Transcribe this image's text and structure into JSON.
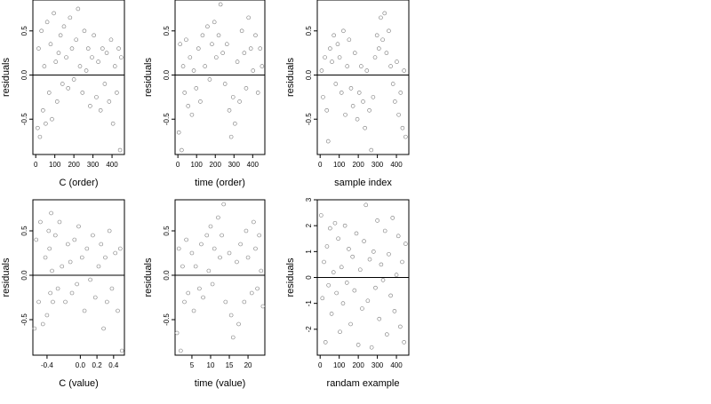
{
  "figure": {
    "ylabel_text": "residuals"
  },
  "chart_data": [
    {
      "type": "scatter",
      "id": "c-order",
      "xlabel": "C (order)",
      "ylabel": "residuals",
      "xlim": [
        -15,
        465
      ],
      "ylim": [
        -0.9,
        0.85
      ],
      "xticks": [
        0,
        100,
        200,
        300,
        400
      ],
      "xtick_labels": [
        "0",
        "100",
        "200",
        "300",
        "400"
      ],
      "yticks": [
        -0.5,
        0.0,
        0.5
      ],
      "ytick_labels": [
        "-0.5",
        "0.0",
        "0.5"
      ],
      "hline": 0,
      "grid": false,
      "points": [
        [
          10,
          -0.6
        ],
        [
          15,
          0.3
        ],
        [
          22,
          -0.7
        ],
        [
          30,
          0.5
        ],
        [
          38,
          -0.4
        ],
        [
          45,
          0.1
        ],
        [
          52,
          -0.55
        ],
        [
          60,
          0.6
        ],
        [
          70,
          -0.2
        ],
        [
          78,
          0.35
        ],
        [
          85,
          -0.5
        ],
        [
          95,
          0.7
        ],
        [
          105,
          0.15
        ],
        [
          112,
          -0.3
        ],
        [
          120,
          0.25
        ],
        [
          130,
          0.45
        ],
        [
          140,
          -0.1
        ],
        [
          148,
          0.55
        ],
        [
          160,
          0.2
        ],
        [
          170,
          -0.15
        ],
        [
          180,
          0.65
        ],
        [
          190,
          0.3
        ],
        [
          200,
          -0.05
        ],
        [
          212,
          0.4
        ],
        [
          222,
          0.75
        ],
        [
          232,
          0.1
        ],
        [
          245,
          -0.2
        ],
        [
          255,
          0.5
        ],
        [
          265,
          0.05
        ],
        [
          275,
          0.3
        ],
        [
          285,
          -0.35
        ],
        [
          295,
          0.2
        ],
        [
          305,
          0.45
        ],
        [
          318,
          -0.25
        ],
        [
          328,
          0.15
        ],
        [
          340,
          -0.4
        ],
        [
          350,
          0.3
        ],
        [
          362,
          -0.1
        ],
        [
          372,
          0.25
        ],
        [
          385,
          -0.3
        ],
        [
          395,
          0.4
        ],
        [
          405,
          -0.55
        ],
        [
          415,
          0.1
        ],
        [
          425,
          -0.2
        ],
        [
          435,
          0.3
        ],
        [
          442,
          -0.85
        ],
        [
          448,
          0.2
        ]
      ]
    },
    {
      "type": "scatter",
      "id": "time-order",
      "xlabel": "time (order)",
      "ylabel": "residuals",
      "xlim": [
        -15,
        465
      ],
      "ylim": [
        -0.9,
        0.85
      ],
      "xticks": [
        0,
        100,
        200,
        300,
        400
      ],
      "xtick_labels": [
        "0",
        "100",
        "200",
        "300",
        "400"
      ],
      "yticks": [
        -0.5,
        0.0,
        0.5
      ],
      "ytick_labels": [
        "-0.5",
        "0.0",
        "0.5"
      ],
      "hline": 0,
      "grid": false,
      "points": [
        [
          5,
          -0.65
        ],
        [
          12,
          0.35
        ],
        [
          20,
          -0.85
        ],
        [
          28,
          0.1
        ],
        [
          36,
          -0.2
        ],
        [
          44,
          0.4
        ],
        [
          55,
          -0.35
        ],
        [
          65,
          0.2
        ],
        [
          75,
          -0.45
        ],
        [
          85,
          0.05
        ],
        [
          98,
          -0.15
        ],
        [
          110,
          0.3
        ],
        [
          120,
          -0.3
        ],
        [
          132,
          0.45
        ],
        [
          145,
          0.1
        ],
        [
          158,
          0.55
        ],
        [
          170,
          -0.05
        ],
        [
          182,
          0.35
        ],
        [
          195,
          0.6
        ],
        [
          205,
          0.2
        ],
        [
          218,
          0.45
        ],
        [
          228,
          0.8
        ],
        [
          240,
          0.25
        ],
        [
          252,
          -0.1
        ],
        [
          262,
          0.35
        ],
        [
          275,
          -0.4
        ],
        [
          285,
          -0.7
        ],
        [
          295,
          -0.25
        ],
        [
          305,
          -0.55
        ],
        [
          318,
          0.15
        ],
        [
          330,
          -0.3
        ],
        [
          342,
          0.5
        ],
        [
          355,
          0.25
        ],
        [
          365,
          -0.15
        ],
        [
          378,
          0.65
        ],
        [
          390,
          0.3
        ],
        [
          402,
          0.05
        ],
        [
          415,
          0.45
        ],
        [
          428,
          -0.2
        ],
        [
          440,
          0.3
        ],
        [
          450,
          0.1
        ]
      ]
    },
    {
      "type": "scatter",
      "id": "sample-index",
      "xlabel": "sample index",
      "ylabel": "residuals",
      "xlim": [
        -15,
        465
      ],
      "ylim": [
        -0.9,
        0.85
      ],
      "xticks": [
        0,
        100,
        200,
        300,
        400
      ],
      "xtick_labels": [
        "0",
        "100",
        "200",
        "300",
        "400"
      ],
      "yticks": [
        -0.5,
        0.0,
        0.5
      ],
      "ytick_labels": [
        "-0.5",
        "0.0",
        "0.5"
      ],
      "hline": 0,
      "grid": false,
      "points": [
        [
          8,
          0.05
        ],
        [
          15,
          -0.25
        ],
        [
          25,
          0.2
        ],
        [
          35,
          -0.4
        ],
        [
          42,
          -0.75
        ],
        [
          52,
          0.3
        ],
        [
          62,
          0.15
        ],
        [
          72,
          0.45
        ],
        [
          82,
          -0.1
        ],
        [
          92,
          0.35
        ],
        [
          102,
          0.2
        ],
        [
          112,
          -0.2
        ],
        [
          122,
          0.5
        ],
        [
          132,
          -0.45
        ],
        [
          142,
          0.1
        ],
        [
          152,
          0.4
        ],
        [
          162,
          -0.15
        ],
        [
          172,
          -0.35
        ],
        [
          182,
          0.25
        ],
        [
          195,
          -0.5
        ],
        [
          205,
          -0.2
        ],
        [
          215,
          0.1
        ],
        [
          225,
          -0.3
        ],
        [
          235,
          -0.6
        ],
        [
          245,
          0.05
        ],
        [
          258,
          -0.4
        ],
        [
          268,
          -0.85
        ],
        [
          278,
          -0.25
        ],
        [
          288,
          0.2
        ],
        [
          298,
          0.45
        ],
        [
          308,
          0.3
        ],
        [
          318,
          0.65
        ],
        [
          328,
          0.4
        ],
        [
          338,
          0.7
        ],
        [
          348,
          0.25
        ],
        [
          360,
          0.5
        ],
        [
          370,
          0.1
        ],
        [
          382,
          -0.1
        ],
        [
          392,
          -0.3
        ],
        [
          402,
          0.15
        ],
        [
          412,
          -0.45
        ],
        [
          422,
          -0.2
        ],
        [
          432,
          -0.6
        ],
        [
          440,
          0.05
        ],
        [
          448,
          -0.7
        ]
      ]
    },
    {
      "type": "scatter",
      "id": "c-value",
      "xlabel": "C (value)",
      "ylabel": "residuals",
      "xlim": [
        -0.57,
        0.53
      ],
      "ylim": [
        -0.9,
        0.85
      ],
      "xticks": [
        -0.4,
        0.0,
        0.2,
        0.4
      ],
      "xtick_labels": [
        "-0.4",
        "0.0",
        "0.2",
        "0.4"
      ],
      "yticks": [
        -0.5,
        0.0,
        0.5
      ],
      "ytick_labels": [
        "-0.5",
        "0.0",
        "0.5"
      ],
      "hline": 0,
      "grid": false,
      "points": [
        [
          -0.55,
          -0.6
        ],
        [
          -0.53,
          0.4
        ],
        [
          -0.5,
          -0.3
        ],
        [
          -0.48,
          0.6
        ],
        [
          -0.45,
          -0.55
        ],
        [
          -0.42,
          0.2
        ],
        [
          -0.4,
          -0.45
        ],
        [
          -0.38,
          0.5
        ],
        [
          -0.37,
          0.3
        ],
        [
          -0.36,
          -0.2
        ],
        [
          -0.35,
          0.7
        ],
        [
          -0.34,
          0.05
        ],
        [
          -0.33,
          -0.3
        ],
        [
          -0.3,
          0.45
        ],
        [
          -0.27,
          -0.15
        ],
        [
          -0.25,
          0.6
        ],
        [
          -0.22,
          0.1
        ],
        [
          -0.18,
          -0.3
        ],
        [
          -0.15,
          0.35
        ],
        [
          -0.12,
          0.15
        ],
        [
          -0.1,
          -0.2
        ],
        [
          -0.07,
          0.4
        ],
        [
          -0.04,
          -0.1
        ],
        [
          -0.02,
          0.55
        ],
        [
          0.02,
          0.2
        ],
        [
          0.05,
          -0.4
        ],
        [
          0.08,
          0.3
        ],
        [
          0.12,
          -0.05
        ],
        [
          0.15,
          0.45
        ],
        [
          0.18,
          -0.25
        ],
        [
          0.22,
          0.1
        ],
        [
          0.25,
          0.35
        ],
        [
          0.28,
          -0.6
        ],
        [
          0.3,
          0.2
        ],
        [
          0.32,
          -0.3
        ],
        [
          0.35,
          0.5
        ],
        [
          0.38,
          -0.15
        ],
        [
          0.42,
          0.25
        ],
        [
          0.45,
          -0.4
        ],
        [
          0.48,
          0.3
        ],
        [
          0.5,
          -0.85
        ]
      ]
    },
    {
      "type": "scatter",
      "id": "time-value",
      "xlabel": "time (value)",
      "ylabel": "residuals",
      "xlim": [
        0.5,
        24.5
      ],
      "ylim": [
        -0.9,
        0.85
      ],
      "xticks": [
        5,
        10,
        15,
        20
      ],
      "xtick_labels": [
        "5",
        "10",
        "15",
        "20"
      ],
      "yticks": [
        -0.5,
        0.0,
        0.5
      ],
      "ytick_labels": [
        "-0.5",
        "0.0",
        "0.5"
      ],
      "hline": 0,
      "grid": false,
      "points": [
        [
          1,
          -0.65
        ],
        [
          1.5,
          0.3
        ],
        [
          2,
          -0.85
        ],
        [
          2.5,
          0.1
        ],
        [
          3,
          -0.3
        ],
        [
          3.5,
          0.4
        ],
        [
          4,
          -0.2
        ],
        [
          5,
          0.25
        ],
        [
          5.5,
          -0.4
        ],
        [
          6,
          0.1
        ],
        [
          7,
          -0.15
        ],
        [
          7.5,
          0.35
        ],
        [
          8,
          -0.25
        ],
        [
          9,
          0.45
        ],
        [
          9.5,
          0.05
        ],
        [
          10,
          0.55
        ],
        [
          10.5,
          -0.1
        ],
        [
          11,
          0.3
        ],
        [
          12,
          0.65
        ],
        [
          12.5,
          0.2
        ],
        [
          13,
          0.45
        ],
        [
          13.5,
          0.8
        ],
        [
          14,
          -0.3
        ],
        [
          15,
          0.25
        ],
        [
          15.5,
          -0.45
        ],
        [
          16,
          -0.7
        ],
        [
          17,
          0.15
        ],
        [
          17.5,
          -0.55
        ],
        [
          18,
          0.35
        ],
        [
          19,
          -0.3
        ],
        [
          19.5,
          0.5
        ],
        [
          20,
          0.2
        ],
        [
          21,
          -0.2
        ],
        [
          21.5,
          0.6
        ],
        [
          22,
          0.3
        ],
        [
          22.5,
          -0.15
        ],
        [
          23,
          0.45
        ],
        [
          23.5,
          0.05
        ],
        [
          24,
          -0.35
        ]
      ]
    },
    {
      "type": "scatter",
      "id": "randam-example",
      "xlabel": "randam example",
      "ylabel": "residuals",
      "xlim": [
        -15,
        465
      ],
      "ylim": [
        -3.0,
        3.0
      ],
      "xticks": [
        0,
        100,
        200,
        300,
        400
      ],
      "xtick_labels": [
        "0",
        "100",
        "200",
        "300",
        "400"
      ],
      "yticks": [
        -2,
        -1,
        0,
        1,
        2,
        3
      ],
      "ytick_labels": [
        "-2",
        "-1",
        "0",
        "1",
        "2",
        "3"
      ],
      "hline": 0,
      "grid": false,
      "points": [
        [
          5,
          2.4
        ],
        [
          12,
          -0.8
        ],
        [
          20,
          0.6
        ],
        [
          28,
          -2.5
        ],
        [
          36,
          1.2
        ],
        [
          44,
          -0.3
        ],
        [
          52,
          1.9
        ],
        [
          60,
          -1.4
        ],
        [
          70,
          0.2
        ],
        [
          78,
          2.1
        ],
        [
          86,
          -0.6
        ],
        [
          95,
          1.5
        ],
        [
          104,
          -2.1
        ],
        [
          112,
          0.4
        ],
        [
          120,
          -1.0
        ],
        [
          130,
          2.0
        ],
        [
          140,
          -0.2
        ],
        [
          150,
          1.1
        ],
        [
          160,
          -1.8
        ],
        [
          170,
          0.8
        ],
        [
          180,
          -0.5
        ],
        [
          190,
          1.7
        ],
        [
          200,
          -2.6
        ],
        [
          210,
          0.3
        ],
        [
          220,
          -1.2
        ],
        [
          230,
          1.4
        ],
        [
          240,
          2.8
        ],
        [
          250,
          -0.9
        ],
        [
          260,
          0.7
        ],
        [
          270,
          -2.7
        ],
        [
          280,
          1.0
        ],
        [
          290,
          -0.4
        ],
        [
          300,
          2.2
        ],
        [
          310,
          -1.6
        ],
        [
          320,
          0.5
        ],
        [
          330,
          -0.1
        ],
        [
          340,
          1.8
        ],
        [
          350,
          -2.2
        ],
        [
          360,
          0.9
        ],
        [
          370,
          -0.7
        ],
        [
          380,
          2.3
        ],
        [
          390,
          -1.3
        ],
        [
          400,
          0.1
        ],
        [
          410,
          1.6
        ],
        [
          420,
          -1.9
        ],
        [
          430,
          0.6
        ],
        [
          440,
          -2.5
        ],
        [
          448,
          1.3
        ]
      ]
    }
  ]
}
